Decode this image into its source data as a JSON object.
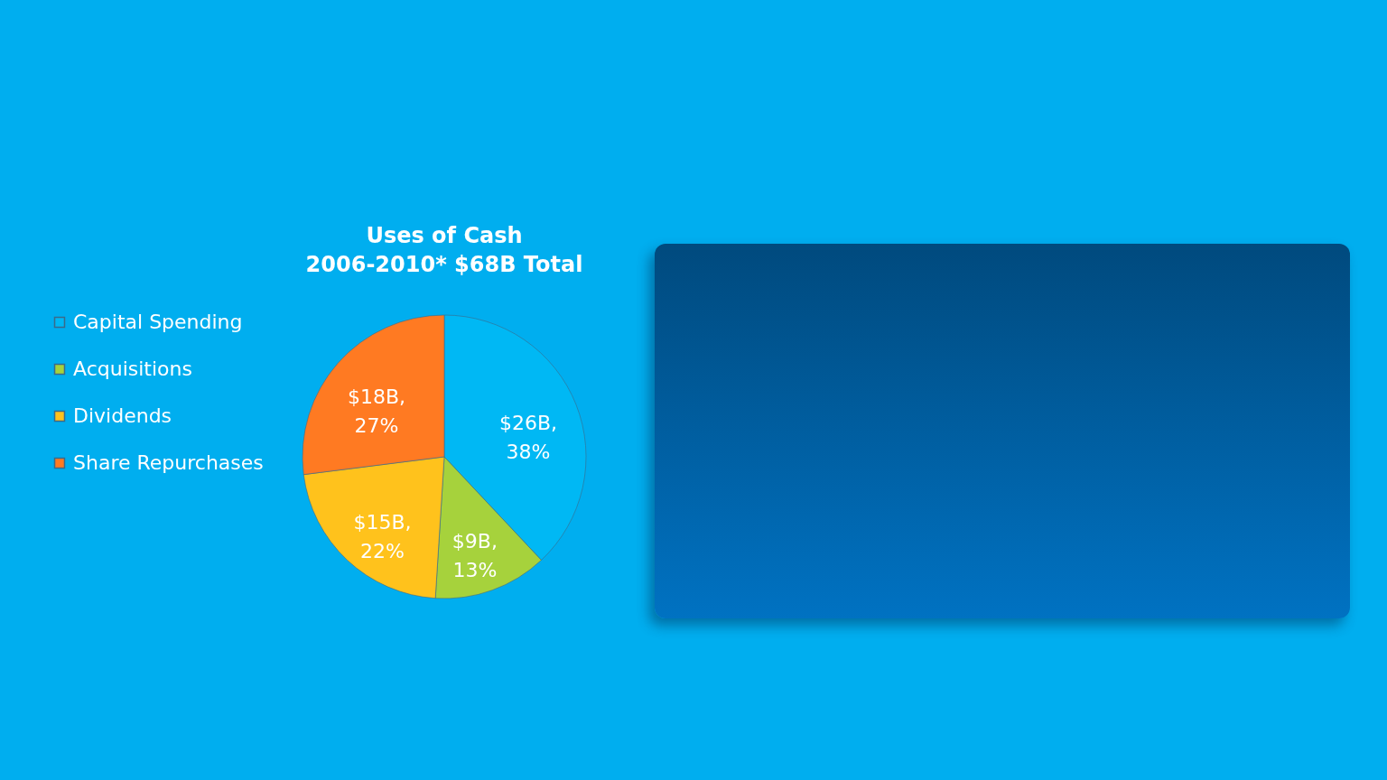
{
  "chart_data": {
    "type": "pie",
    "title": "Uses of Cash",
    "subtitle": "2006-2010* $68B Total",
    "categories": [
      "Capital Spending",
      "Acquisitions",
      "Dividends",
      "Share Repurchases"
    ],
    "values": [
      38,
      13,
      22,
      27
    ],
    "colors": [
      "#00b8f4",
      "#a6d23c",
      "#ffc21c",
      "#ff7a22"
    ],
    "value_labels": [
      "$26B, 38%",
      "$9B, 13%",
      "$15B, 22%",
      "$18B, 27%"
    ],
    "legend": "left"
  }
}
